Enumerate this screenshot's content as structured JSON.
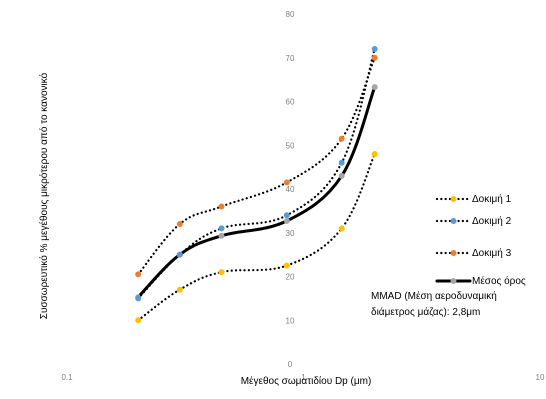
{
  "chart_data": {
    "type": "line",
    "xscale": "log",
    "xlim": [
      0.1,
      10
    ],
    "ylim": [
      0,
      80
    ],
    "grid": false,
    "x_ticks": [
      "0.1",
      "1",
      "10"
    ],
    "y_ticks": [
      "0",
      "10",
      "20",
      "30",
      "40",
      "50",
      "60",
      "70",
      "80"
    ],
    "xlabel": "Μέγεθος σωματιδίου Dp (μm)",
    "ylabel": "Συσσωρευτικό % μεγέθους μικρότερου από το κανονικό",
    "x": [
      0.2,
      0.3,
      0.45,
      0.85,
      1.45,
      2.0
    ],
    "series": [
      {
        "name": "Δοκιμή 1",
        "values": [
          10,
          17,
          21,
          22.5,
          31,
          48
        ],
        "color": "#FFC000",
        "style": "dotted"
      },
      {
        "name": "Δοκιμή 2",
        "values": [
          15,
          25,
          31,
          34,
          46,
          72
        ],
        "color": "#5B9BD5",
        "style": "dotted"
      },
      {
        "name": "Δοκιμή 3",
        "values": [
          20.5,
          32,
          36,
          41.5,
          51.5,
          70
        ],
        "color": "#ED7D31",
        "style": "dotted"
      },
      {
        "name": "Μέσος όρος",
        "values": [
          15.3,
          25,
          29.3,
          32.7,
          43,
          63.3
        ],
        "color": "#000000",
        "marker_color": "#A5A5A5",
        "style": "solid"
      }
    ],
    "legend_position": "right",
    "annotation": [
      "MMAD (Μέση αεροδυναμική",
      "διάμετρος μάζας): 2,8μm"
    ]
  }
}
